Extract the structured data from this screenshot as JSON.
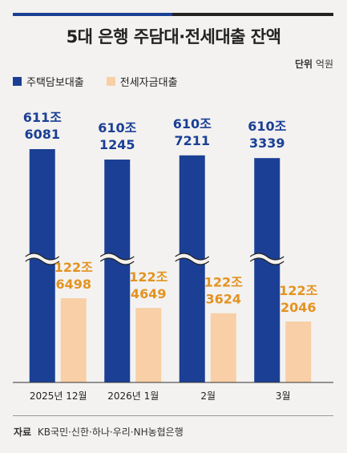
{
  "title": "5대 은행 주담대·전세대출 잔액",
  "unit_label": "단위",
  "unit_value": "억원",
  "source_label": "자료",
  "source_value": "KB국민·신한·하나·우리·NH농협은행",
  "colors": {
    "primary": "#1b3f95",
    "secondary": "#f8cfa6",
    "secondary_label": "#e39322"
  },
  "chart_data": {
    "type": "bar",
    "categories": [
      "2025년 12월",
      "2026년 1월",
      "2월",
      "3월"
    ],
    "series": [
      {
        "name": "주택담보대출",
        "values": [
          6116081,
          6101245,
          6107211,
          6103339
        ],
        "labels_top": [
          "611조",
          "610조",
          "610조",
          "610조"
        ],
        "labels_bottom": [
          "6081",
          "1245",
          "7211",
          "3339"
        ]
      },
      {
        "name": "전세자금대출",
        "values": [
          1226498,
          1224649,
          1223624,
          1222046
        ],
        "labels_top": [
          "122조",
          "122조",
          "122조",
          "122조"
        ],
        "labels_bottom": [
          "6498",
          "4649",
          "3624",
          "2046"
        ]
      }
    ],
    "axis_break": true,
    "grid": false,
    "legend_position": "top-left"
  }
}
